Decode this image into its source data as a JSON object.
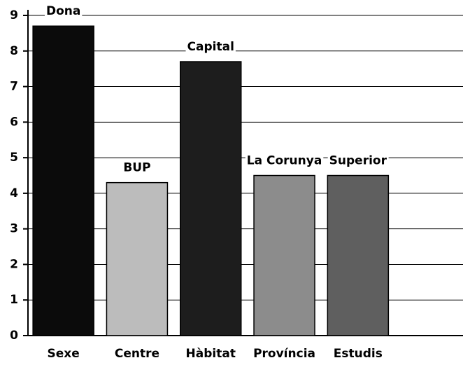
{
  "chart_data": {
    "type": "bar",
    "categories": [
      "Sexe",
      "Centre",
      "Hàbitat",
      "Província",
      "Estudis"
    ],
    "values": [
      8.7,
      4.3,
      7.7,
      4.5,
      4.5
    ],
    "bar_labels": [
      "Dona",
      "BUP",
      "Capital",
      "La Corunya",
      "Superior"
    ],
    "colors": [
      "#0b0b0b",
      "#bcbcbc",
      "#1d1d1d",
      "#8c8c8c",
      "#5f5f5f"
    ],
    "ylim": [
      0,
      9
    ],
    "yticks": [
      0,
      1,
      2,
      3,
      4,
      5,
      6,
      7,
      8,
      9
    ],
    "grid": true
  }
}
